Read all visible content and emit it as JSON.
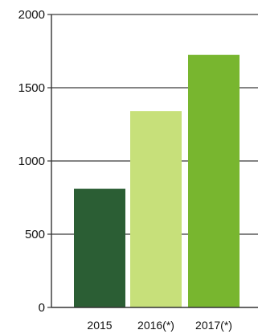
{
  "chart_data": {
    "type": "bar",
    "categories": [
      "2015",
      "2016(*)",
      "2017(*)"
    ],
    "values": [
      810,
      1340,
      1725
    ],
    "bar_colors": [
      "#2b5e34",
      "#c7e07a",
      "#78b62f"
    ],
    "title": "",
    "xlabel": "",
    "ylabel": "",
    "ylim": [
      0,
      2000
    ],
    "yticks": [
      0,
      500,
      1000,
      1500,
      2000
    ],
    "ytick_labels": [
      "0",
      "500",
      "1000",
      "1500",
      "2000"
    ],
    "grid": "horizontal",
    "legend": "none"
  }
}
